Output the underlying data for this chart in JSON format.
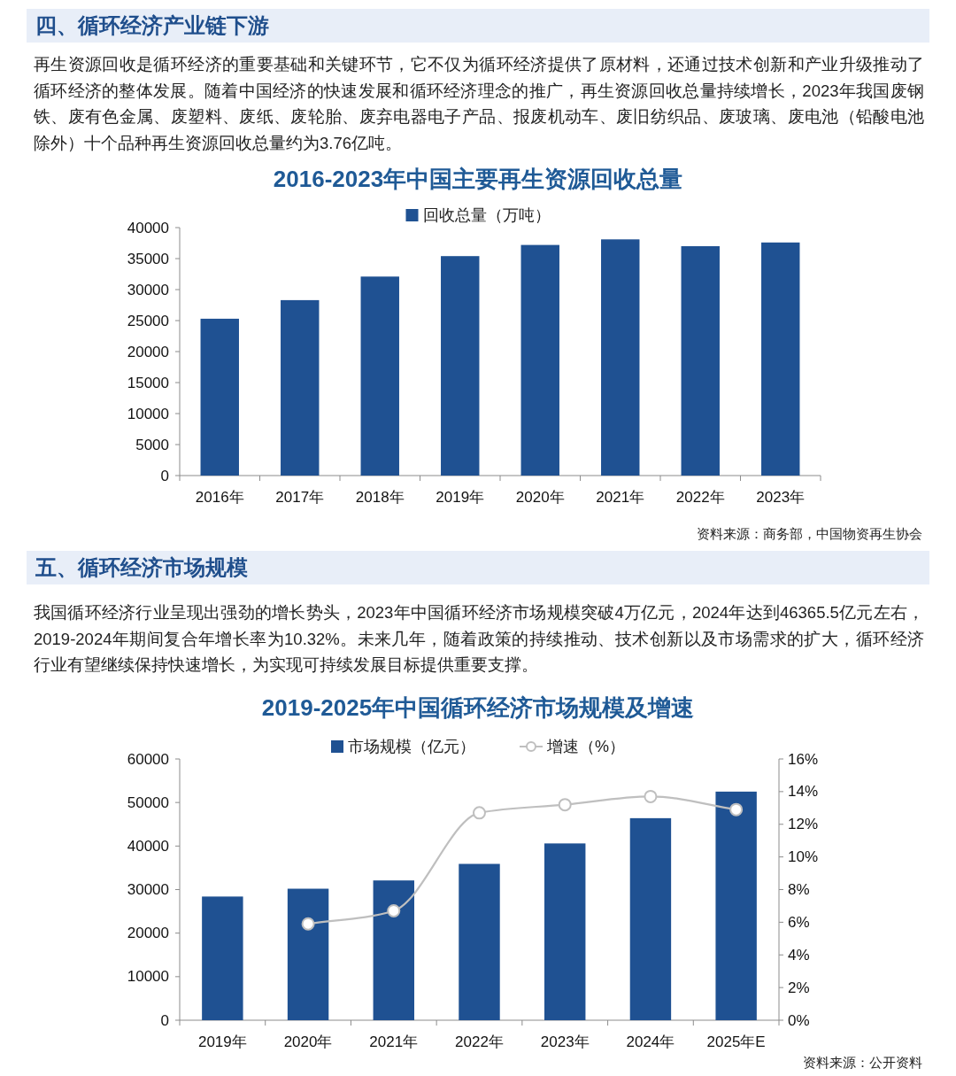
{
  "chart_data": [
    {
      "type": "bar",
      "title": "2016-2023年中国主要再生资源回收总量",
      "annotations": [
        "四、循环经济产业链下游",
        "再生资源回收是循环经济的重要基础和关键环节，它不仅为循环经济提供了原材料，还通过技术创新和产业升级推动了循环经济的整体发展。随着中国经济的快速发展和循环经济理念的推广，再生资源回收总量持续增长，2023年我国废钢铁、废有色金属、废塑料、废纸、废轮胎、废弃电器电子产品、报废机动车、废旧纺织品、废玻璃、废电池（铅酸电池除外）十个品种再生资源回收总量约为3.76亿吨。",
        "资料来源：商务部，中国物资再生协会"
      ],
      "categories": [
        "2016年",
        "2017年",
        "2018年",
        "2019年",
        "2020年",
        "2021年",
        "2022年",
        "2023年"
      ],
      "series": [
        {
          "name": "回收总量（万吨）",
          "color": "#1f5192",
          "values": [
            25300,
            28300,
            32100,
            35400,
            37200,
            38100,
            37000,
            37600
          ]
        }
      ],
      "ylim": [
        0,
        40000
      ],
      "yticks": [
        0,
        5000,
        10000,
        15000,
        20000,
        25000,
        30000,
        35000,
        40000
      ],
      "legend": "top"
    },
    {
      "type": "bar",
      "title": "2019-2025年中国循环经济市场规模及增速",
      "annotations": [
        "五、循环经济市场规模",
        "我国循环经济行业呈现出强劲的增长势头，2023年中国循环经济市场规模突破4万亿元，2024年达到46365.5亿元左右，2019-2024年期间复合年增长率为10.32%。未来几年，随着政策的持续推动、技术创新以及市场需求的扩大，循环经济行业有望继续保持快速增长，为实现可持续发展目标提供重要支撑。",
        "资料来源：公开资料"
      ],
      "categories": [
        "2019年",
        "2020年",
        "2021年",
        "2022年",
        "2023年",
        "2024年",
        "2025年E"
      ],
      "series": [
        {
          "name": "市场规模（亿元）",
          "color": "#1f5192",
          "values": [
            28400,
            30200,
            32100,
            35900,
            40600,
            46400,
            52500
          ]
        },
        {
          "name": "增速（%）",
          "type": "line",
          "axis": "y2",
          "color": "#bfbfbf",
          "marker": "circle",
          "values": [
            null,
            5.9,
            6.7,
            12.7,
            13.2,
            13.7,
            12.9
          ]
        }
      ],
      "ylim": [
        0,
        60000
      ],
      "yticks": [
        0,
        10000,
        20000,
        30000,
        40000,
        50000,
        60000
      ],
      "y2lim": [
        0,
        16
      ],
      "y2ticks": [
        {
          "value": 0,
          "label": "0%"
        },
        {
          "value": 2,
          "label": "2%"
        },
        {
          "value": 4,
          "label": "4%"
        },
        {
          "value": 6,
          "label": "6%"
        },
        {
          "value": 8,
          "label": "8%"
        },
        {
          "value": 10,
          "label": "10%"
        },
        {
          "value": 12,
          "label": "12%"
        },
        {
          "value": 14,
          "label": "14%"
        },
        {
          "value": 16,
          "label": "16%"
        }
      ],
      "legend": "top"
    }
  ]
}
